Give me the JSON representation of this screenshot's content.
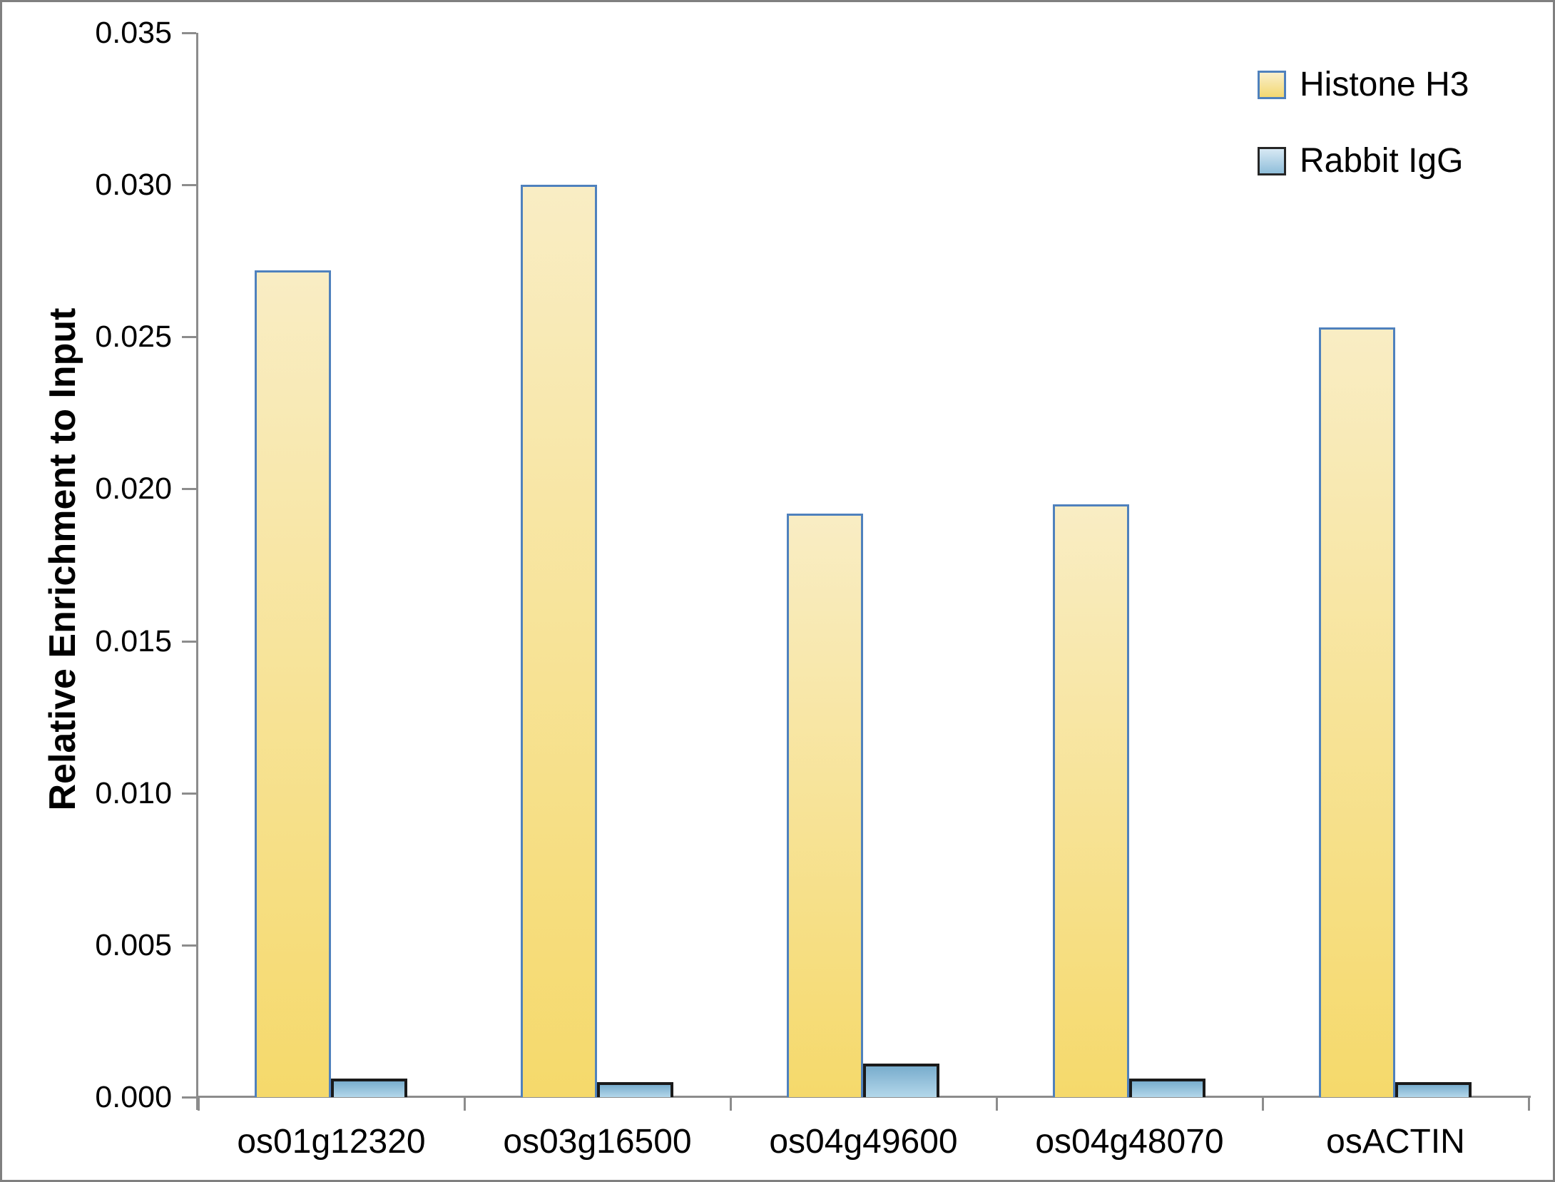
{
  "chart_data": {
    "type": "bar",
    "title": "",
    "xlabel": "",
    "ylabel": "Relative Enrichment to Input",
    "categories": [
      "os01g12320",
      "os03g16500",
      "os04g49600",
      "os04g48070",
      "osACTIN"
    ],
    "series": [
      {
        "name": "Histone H3",
        "values": [
          0.0272,
          0.03,
          0.0192,
          0.0195,
          0.0253
        ],
        "fill_top": "#F9EDC4",
        "fill_bottom": "#F5D96B",
        "border_color": "#4F81BD",
        "border_width": 3,
        "legend_swatch": {
          "top": "#F9EFCB",
          "bottom": "#F3D871",
          "border": "#4F81BD"
        }
      },
      {
        "name": "Rabbit IgG",
        "values": [
          0.0006,
          0.0005,
          0.0011,
          0.0006,
          0.0005
        ],
        "fill_top": "#79ADCD",
        "fill_bottom": "#B3D7EA",
        "border_color": "#1A1A1A",
        "border_width": 4,
        "legend_swatch": {
          "top": "#D8E9F4",
          "bottom": "#8FBEDA",
          "border": "#262626"
        }
      }
    ],
    "ylim": [
      0,
      0.035
    ],
    "ytick_step": 0.005,
    "ytick_labels": [
      "0.000",
      "0.005",
      "0.010",
      "0.015",
      "0.020",
      "0.025",
      "0.030",
      "0.035"
    ],
    "grid": false,
    "legend_position": "top-right"
  },
  "colors": {
    "axis": "#8C8C8C",
    "frame_border": "#808080",
    "text": "#000000",
    "background": "#FFFFFF"
  }
}
